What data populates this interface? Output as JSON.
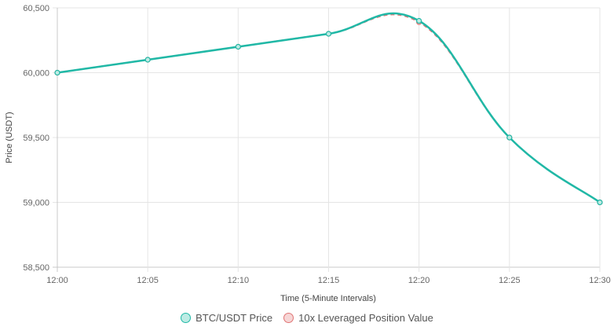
{
  "chart_data": {
    "type": "line",
    "categories": [
      "12:00",
      "12:05",
      "12:10",
      "12:15",
      "12:20",
      "12:25",
      "12:30"
    ],
    "series": [
      {
        "name": "BTC/USDT Price",
        "values": [
          60000,
          60100,
          60200,
          60300,
          60400,
          59500,
          59000
        ],
        "color": "#20b8a6",
        "fill": "#bdebe4",
        "style": "solid"
      },
      {
        "name": "10x Leveraged Position Value",
        "values": [
          60000,
          60100,
          60200,
          60300,
          60390,
          59500,
          59000
        ],
        "color": "#e07474",
        "fill": "#f6d6d6",
        "style": "dashed"
      }
    ],
    "xlabel": "Time (5-Minute Intervals)",
    "ylabel": "Price (USDT)",
    "ylim": [
      58500,
      60500
    ],
    "yticks": [
      "58,500",
      "59,000",
      "59,500",
      "60,000",
      "60,500"
    ],
    "grid": true,
    "legend_position": "bottom"
  }
}
